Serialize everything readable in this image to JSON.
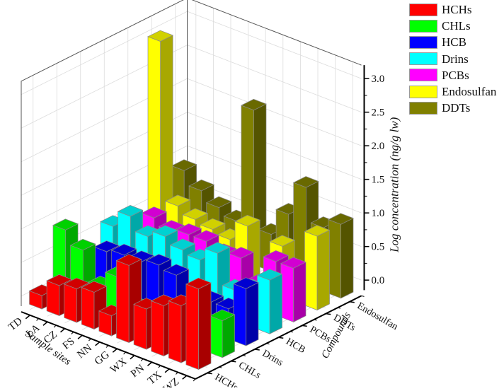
{
  "chart_data": {
    "type": "bar3d",
    "title": "",
    "xlabel": "Sample sites",
    "ylabel": "Compounds",
    "zlabel": "Log concentration (ng/g lw)",
    "zlim": [
      -0.15,
      3.2
    ],
    "zticks": [
      "0.0",
      "0.5",
      "1.0",
      "1.5",
      "2.0",
      "2.5",
      "3.0"
    ],
    "categories": [
      "TD",
      "LA",
      "CZ",
      "FS",
      "NN",
      "GG",
      "WX",
      "PN",
      "TX",
      "WZ"
    ],
    "compound_axis": [
      "HCHs",
      "CHLs",
      "Drins",
      "HCB",
      "PCBs",
      "DDTs",
      "Endosulfan"
    ],
    "legend_position": "top-right",
    "grid": true,
    "series": [
      {
        "name": "HCHs",
        "color": "#ff0000",
        "values": [
          0.05,
          0.3,
          0.35,
          0.4,
          0.15,
          1.0,
          0.45,
          0.6,
          0.7,
          1.05
        ]
      },
      {
        "name": "CHLs",
        "color": "#00ff00",
        "values": [
          0.85,
          0.65,
          0.2,
          0.45,
          0.1,
          0.1,
          -0.05,
          0.4,
          0.05,
          0.4
        ]
      },
      {
        "name": "HCB",
        "color": "#0000ff",
        "values": [
          0.1,
          0.45,
          0.5,
          0.5,
          0.55,
          0.5,
          0.15,
          0.3,
          0.3,
          0.7
        ]
      },
      {
        "name": "Drins",
        "color": "#00ffff",
        "values": [
          0.55,
          0.8,
          0.6,
          0.7,
          0.6,
          0.55,
          0.75,
          0.3,
          0.4,
          0.65
        ]
      },
      {
        "name": "PCBs",
        "color": "#ff00ff",
        "values": [
          0.3,
          0.6,
          0.5,
          0.55,
          0.55,
          0.45,
          0.5,
          0.2,
          0.65,
          0.65
        ]
      },
      {
        "name": "Endosulfan",
        "color": "#ffff00",
        "values": [
          2.95,
          0.6,
          0.5,
          0.45,
          0.4,
          0.7,
          -0.1,
          0.6,
          -0.05,
          0.95
        ]
      },
      {
        "name": "DDTs",
        "color": "#808000",
        "values": [
          0.85,
          0.65,
          0.5,
          0.4,
          2.15,
          0.4,
          0.8,
          1.3,
          0.8,
          0.95
        ]
      }
    ]
  },
  "legend": {
    "items": [
      {
        "label": "HCHs",
        "color": "#ff0000"
      },
      {
        "label": "CHLs",
        "color": "#00ff00"
      },
      {
        "label": "HCB",
        "color": "#0000ff"
      },
      {
        "label": "Drins",
        "color": "#00ffff"
      },
      {
        "label": "PCBs",
        "color": "#ff00ff"
      },
      {
        "label": "Endosulfan",
        "color": "#ffff00"
      },
      {
        "label": "DDTs",
        "color": "#808000"
      }
    ]
  }
}
